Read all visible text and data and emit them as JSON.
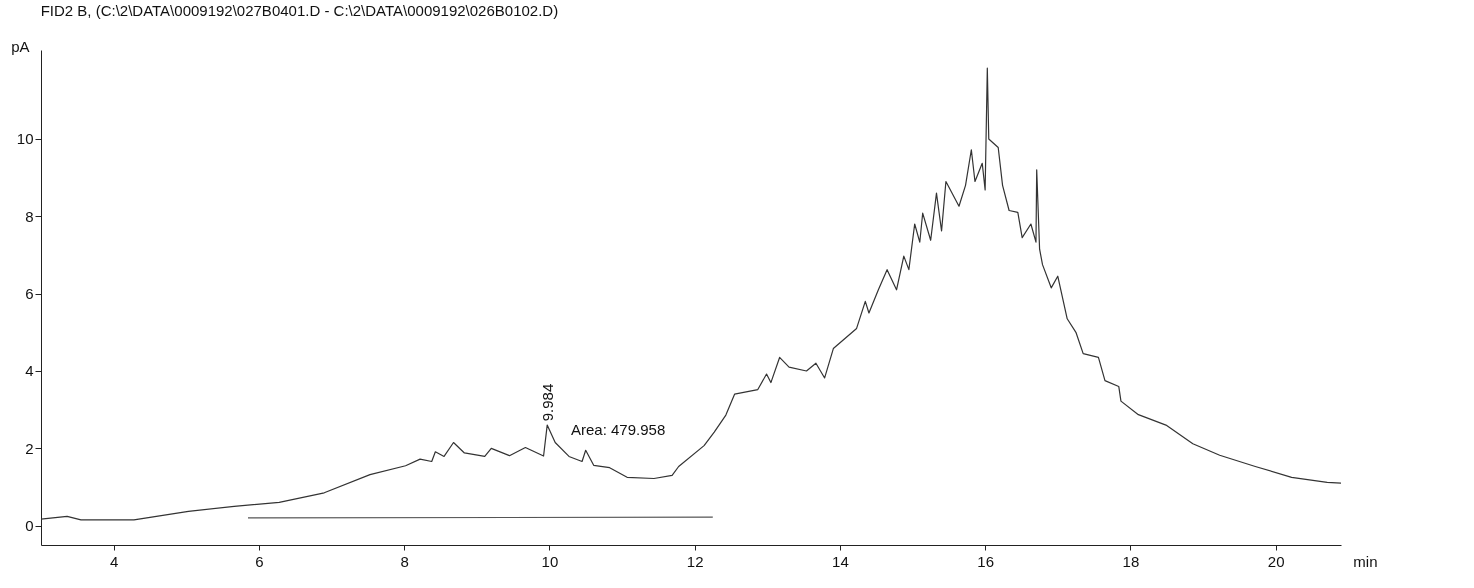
{
  "chart_data": {
    "type": "line",
    "title": "FID2 B,  (C:\\2\\DATA\\0009192\\027B0401.D - C:\\2\\DATA\\0009192\\026B0102.D)",
    "xlabel": "min",
    "ylabel": "pA",
    "xlim": [
      3,
      20.9
    ],
    "xticks": [
      4,
      6,
      8,
      10,
      12,
      14,
      16,
      18,
      20
    ],
    "ylim": [
      -0.5,
      12.3
    ],
    "yticks": [
      0,
      2,
      4,
      6,
      8,
      10
    ],
    "grid": false,
    "annotations": [
      {
        "text": "9.984",
        "x": 9.984,
        "y": 2.7
      },
      "Area: 479.958"
    ],
    "series": [
      {
        "color": "#333333",
        "x": [
          3.0,
          3.36,
          3.55,
          4.28,
          5.03,
          5.66,
          6.28,
          6.9,
          7.53,
          8.02,
          8.22,
          8.38,
          8.43,
          8.55,
          8.68,
          8.83,
          9.11,
          9.2,
          9.45,
          9.67,
          9.92,
          9.97,
          10.08,
          10.27,
          10.45,
          10.5,
          10.61,
          10.83,
          11.07,
          11.44,
          11.69,
          11.78,
          12.13,
          12.27,
          12.43,
          12.55,
          12.87,
          12.99,
          13.05,
          13.17,
          13.3,
          13.54,
          13.67,
          13.79,
          13.91,
          14.23,
          14.35,
          14.4,
          14.53,
          14.65,
          14.78,
          14.88,
          14.95,
          15.03,
          15.1,
          15.14,
          15.25,
          15.33,
          15.4,
          15.46,
          15.64,
          15.73,
          15.81,
          15.86,
          15.96,
          16.0,
          16.03,
          16.05,
          16.18,
          16.24,
          16.33,
          16.45,
          16.51,
          16.63,
          16.7,
          16.71,
          16.75,
          16.79,
          16.91,
          17.0,
          17.13,
          17.25,
          17.35,
          17.56,
          17.65,
          17.84,
          17.87,
          18.11,
          18.49,
          18.86,
          19.23,
          19.72,
          20.22,
          20.71,
          20.9
        ],
        "values": [
          0.17,
          0.24,
          0.15,
          0.15,
          0.37,
          0.5,
          0.6,
          0.85,
          1.32,
          1.55,
          1.72,
          1.66,
          1.91,
          1.79,
          2.15,
          1.88,
          1.79,
          2.0,
          1.81,
          2.02,
          1.8,
          2.6,
          2.15,
          1.79,
          1.66,
          1.95,
          1.56,
          1.5,
          1.25,
          1.22,
          1.3,
          1.53,
          2.07,
          2.42,
          2.86,
          3.4,
          3.52,
          3.92,
          3.7,
          4.35,
          4.1,
          4.0,
          4.2,
          3.82,
          4.58,
          5.1,
          5.8,
          5.5,
          6.1,
          6.62,
          6.1,
          6.97,
          6.62,
          7.8,
          7.33,
          8.08,
          7.38,
          8.6,
          7.62,
          8.9,
          8.26,
          8.8,
          9.72,
          8.9,
          9.37,
          8.68,
          11.83,
          10.0,
          9.78,
          8.8,
          8.15,
          8.1,
          7.45,
          7.8,
          7.33,
          9.2,
          7.15,
          6.75,
          6.15,
          6.45,
          5.35,
          5.0,
          4.45,
          4.35,
          3.75,
          3.6,
          3.22,
          2.87,
          2.6,
          2.12,
          1.82,
          1.53,
          1.25,
          1.12,
          1.1
        ]
      },
      {
        "type": "line",
        "color": "#555555",
        "x": [
          5.85,
          12.25
        ],
        "values": [
          0.2,
          0.22
        ]
      }
    ]
  }
}
